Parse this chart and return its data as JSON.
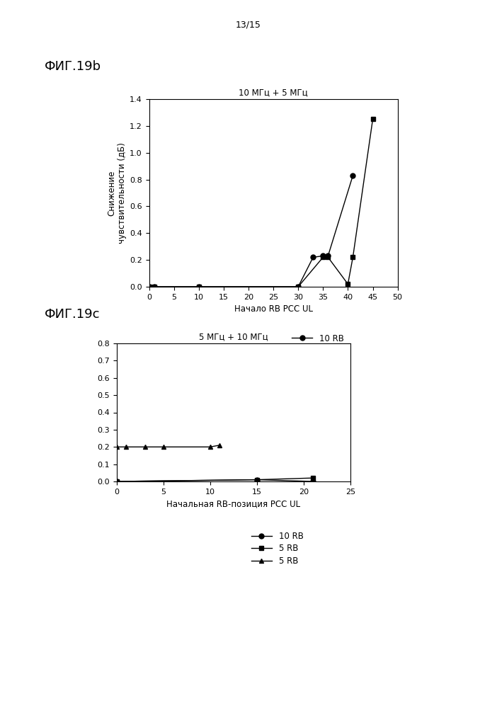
{
  "page_label": "13/15",
  "fig19b": {
    "title_label": "ФИГ.19b",
    "plot_title": "10 МГц + 5 МГц",
    "xlabel": "Начало RB PCC UL",
    "ylabel": "Снижение\nчувствительности (дБ)",
    "xlim": [
      0,
      50
    ],
    "ylim": [
      0.0,
      1.4
    ],
    "xticks": [
      0,
      5,
      10,
      15,
      20,
      25,
      30,
      35,
      40,
      45,
      50
    ],
    "yticks": [
      0.0,
      0.2,
      0.4,
      0.6,
      0.8,
      1.0,
      1.2,
      1.4
    ],
    "series": [
      {
        "label": "10 RB",
        "x": [
          0,
          1,
          10,
          30,
          33,
          35,
          36,
          41
        ],
        "y": [
          0.0,
          0.0,
          0.0,
          0.0,
          0.22,
          0.23,
          0.23,
          0.83
        ],
        "marker": "o",
        "color": "#000000"
      },
      {
        "label": "5 RB",
        "x": [
          0,
          1,
          10,
          30,
          35,
          36,
          40,
          41,
          45
        ],
        "y": [
          0.0,
          0.0,
          0.0,
          0.0,
          0.22,
          0.22,
          0.02,
          0.22,
          1.25
        ],
        "marker": "s",
        "color": "#000000"
      }
    ]
  },
  "fig19c": {
    "title_label": "ФИГ.19c",
    "plot_title": "5 МГц + 10 МГц",
    "xlabel": "Начальная RB-позиция PCC UL",
    "ylabel": "",
    "xlim": [
      0,
      25
    ],
    "ylim": [
      0.0,
      0.8
    ],
    "xticks": [
      0,
      5,
      10,
      15,
      20,
      25
    ],
    "yticks": [
      0.0,
      0.1,
      0.2,
      0.3,
      0.4,
      0.5,
      0.6,
      0.7,
      0.8
    ],
    "series": [
      {
        "label": "10 RB",
        "x": [
          0,
          15,
          21
        ],
        "y": [
          0.0,
          0.01,
          0.0
        ],
        "marker": "o",
        "color": "#000000"
      },
      {
        "label": "5 RB",
        "x": [
          0,
          15,
          21
        ],
        "y": [
          0.0,
          0.01,
          0.02
        ],
        "marker": "s",
        "color": "#000000"
      },
      {
        "label": "5 RB",
        "x": [
          0,
          1,
          3,
          5,
          10,
          11
        ],
        "y": [
          0.2,
          0.2,
          0.2,
          0.2,
          0.2,
          0.21
        ],
        "marker": "^",
        "color": "#000000"
      }
    ]
  }
}
